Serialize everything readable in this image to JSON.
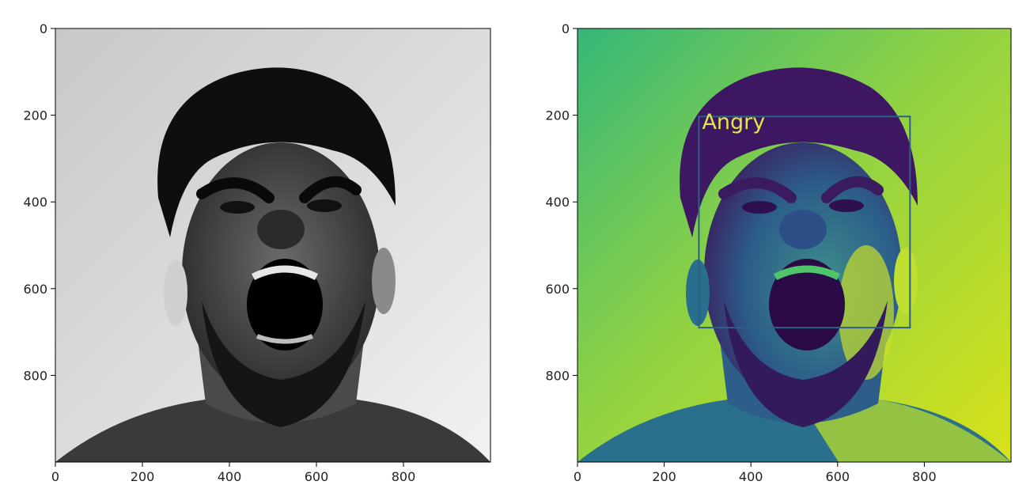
{
  "figure": {
    "panels": [
      {
        "name": "grayscale",
        "colormap": "gray",
        "x_ticks": [
          "0",
          "200",
          "400",
          "600",
          "800"
        ],
        "y_ticks": [
          "0",
          "200",
          "400",
          "600",
          "800"
        ],
        "image_size": [
          1000,
          1000
        ]
      },
      {
        "name": "viridis",
        "colormap": "viridis",
        "x_ticks": [
          "0",
          "200",
          "400",
          "600",
          "800"
        ],
        "y_ticks": [
          "0",
          "200",
          "400",
          "600",
          "800"
        ],
        "image_size": [
          1000,
          1000
        ],
        "detection": {
          "label": "Angry",
          "box": {
            "x0": 280,
            "y0": 203,
            "x1": 767,
            "y1": 690
          },
          "box_color": "#2f5f85",
          "label_color": "#e3e64a"
        }
      }
    ]
  },
  "colors": {
    "axis": "#000000",
    "gray_bg": "#dcdcdc",
    "viridis_bg": "#9ad43a",
    "viridis_dark": "#3b1e5c"
  }
}
